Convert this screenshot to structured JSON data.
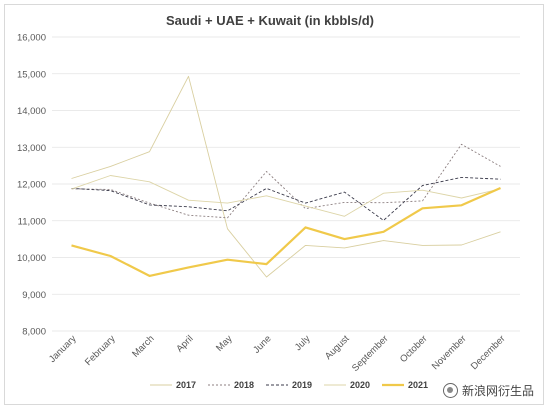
{
  "chart_data": {
    "type": "line",
    "title": "Saudi + UAE + Kuwait (in kbbls/d)",
    "xlabel": "",
    "ylabel": "",
    "ylim": [
      8000,
      16000
    ],
    "yticks": [
      "8,000",
      "9,000",
      "10,000",
      "11,000",
      "12,000",
      "13,000",
      "14,000",
      "15,000",
      "16,000"
    ],
    "ytick_values": [
      8000,
      9000,
      10000,
      11000,
      12000,
      13000,
      14000,
      15000,
      16000
    ],
    "categories": [
      "January",
      "February",
      "March",
      "April",
      "May",
      "June",
      "July",
      "August",
      "September",
      "October",
      "November",
      "December"
    ],
    "grid": true,
    "legend": "bottom",
    "series": [
      {
        "name": "2017",
        "color": "#d9cfa0",
        "width": 0.9,
        "dash": "",
        "values": [
          12150,
          12480,
          12880,
          14930,
          10780,
          9470,
          10330,
          10260,
          10460,
          10330,
          10340,
          10700
        ]
      },
      {
        "name": "2018",
        "color": "#8c7f80",
        "width": 0.9,
        "dash": "2,2",
        "values": [
          11870,
          11850,
          11480,
          11150,
          11080,
          12340,
          11330,
          11500,
          11490,
          11540,
          13080,
          12480
        ]
      },
      {
        "name": "2019",
        "color": "#3a3a4a",
        "width": 0.9,
        "dash": "3,2",
        "values": [
          11880,
          11820,
          11430,
          11380,
          11270,
          11880,
          11480,
          11780,
          11010,
          11960,
          12180,
          12130
        ]
      },
      {
        "name": "2020",
        "color": "#ddd5a8",
        "width": 0.9,
        "dash": "",
        "values": [
          11860,
          12230,
          12060,
          11560,
          11480,
          11680,
          11400,
          11120,
          11750,
          11830,
          11620,
          11870
        ]
      },
      {
        "name": "2021",
        "color": "#f0c94a",
        "width": 2.2,
        "dash": "",
        "values": [
          10330,
          10040,
          9500,
          9730,
          9940,
          9820,
          10820,
          10500,
          10700,
          11340,
          11420,
          11890
        ]
      }
    ]
  },
  "watermark": {
    "text": "新浪网衍生品"
  }
}
